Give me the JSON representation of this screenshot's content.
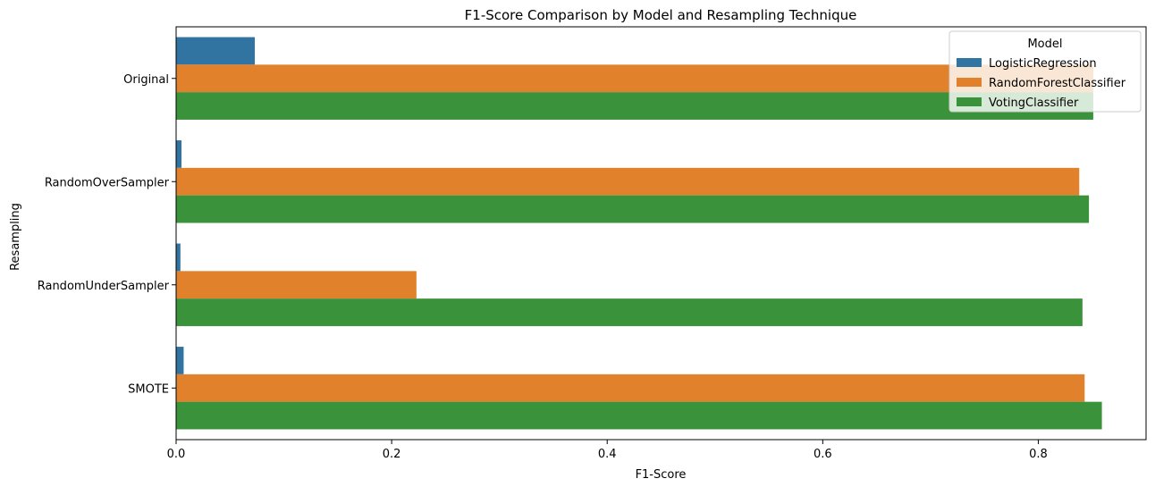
{
  "chart_data": {
    "type": "bar",
    "orientation": "horizontal",
    "title": "F1-Score Comparison by Model and Resampling Technique",
    "xlabel": "F1-Score",
    "ylabel": "Resampling",
    "categories": [
      "Original",
      "RandomOverSampler",
      "RandomUnderSampler",
      "SMOTE"
    ],
    "xlim": [
      0,
      0.9
    ],
    "xticks": [
      0.0,
      0.2,
      0.4,
      0.6,
      0.8
    ],
    "xtick_labels": [
      "0.0",
      "0.2",
      "0.4",
      "0.6",
      "0.8"
    ],
    "grid": false,
    "legend": {
      "title": "Model",
      "position": "top-right"
    },
    "series": [
      {
        "name": "LogisticRegression",
        "color": "#3274a1",
        "values": [
          0.073,
          0.005,
          0.004,
          0.007
        ]
      },
      {
        "name": "RandomForestClassifier",
        "color": "#e1812c",
        "values": [
          0.851,
          0.838,
          0.223,
          0.843
        ]
      },
      {
        "name": "VotingClassifier",
        "color": "#3a923a",
        "values": [
          0.851,
          0.847,
          0.841,
          0.859
        ]
      }
    ]
  }
}
